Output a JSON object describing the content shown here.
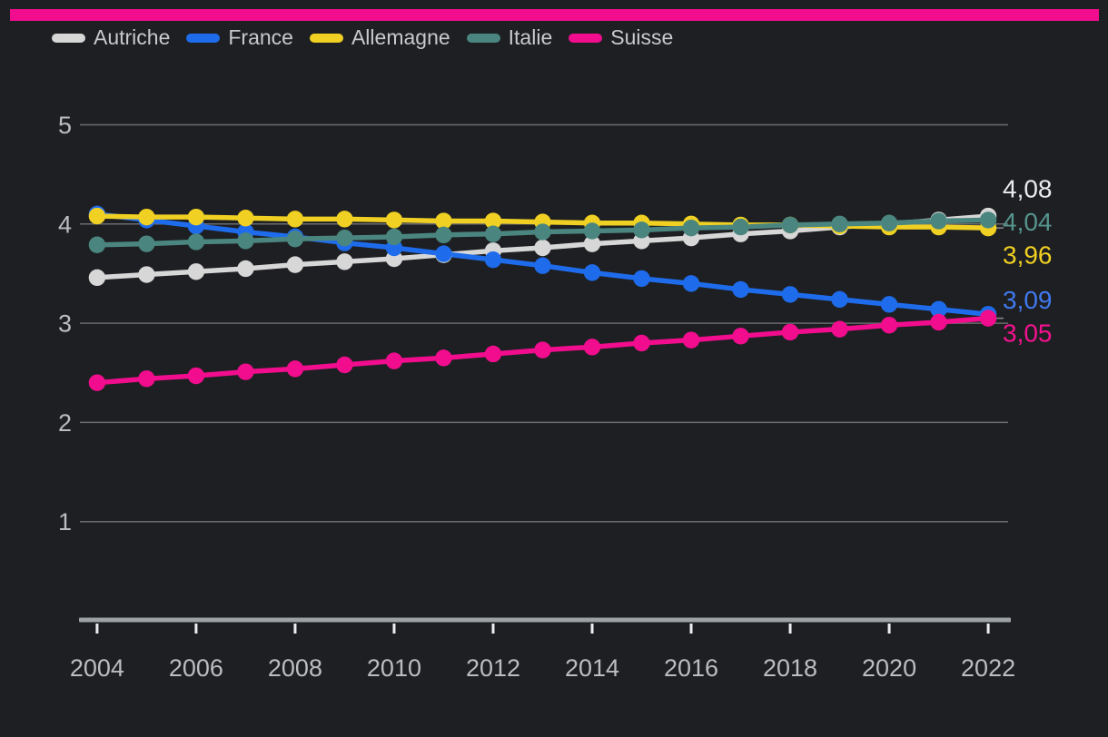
{
  "theme": {
    "background": "#1e1f22",
    "accent_bar_color": "#f20d8e",
    "grid_color": "#6a6b6e",
    "axis_line_color": "#9fa2a5",
    "tick_color": "#eceef0",
    "axis_text_color": "#bcbdbf",
    "legend_text_color": "#c8c9cb",
    "callout_line_color": "#8a8b8e"
  },
  "legend": {
    "items": [
      {
        "label": "Autriche",
        "color": "#d7d7d7"
      },
      {
        "label": "France",
        "color": "#1e6cec"
      },
      {
        "label": "Allemagne",
        "color": "#f0d022"
      },
      {
        "label": "Italie",
        "color": "#4a867f"
      },
      {
        "label": "Suisse",
        "color": "#f20d8e"
      }
    ]
  },
  "chart_data": {
    "type": "line",
    "x": [
      2004,
      2005,
      2006,
      2007,
      2008,
      2009,
      2010,
      2011,
      2012,
      2013,
      2014,
      2015,
      2016,
      2017,
      2018,
      2019,
      2020,
      2021,
      2022
    ],
    "xticks": [
      2004,
      2006,
      2008,
      2010,
      2012,
      2014,
      2016,
      2018,
      2020,
      2022
    ],
    "yticks": [
      1,
      2,
      3,
      4,
      5
    ],
    "ylim": [
      0,
      5
    ],
    "grid": true,
    "legend_position": "top-left",
    "xlabel": "",
    "ylabel": "",
    "series": [
      {
        "name": "Autriche",
        "color": "#d7d7d7",
        "values": [
          3.46,
          3.49,
          3.52,
          3.55,
          3.59,
          3.62,
          3.65,
          3.69,
          3.73,
          3.76,
          3.8,
          3.83,
          3.86,
          3.9,
          3.93,
          3.97,
          4.0,
          4.04,
          4.08
        ],
        "end_label": "4,08",
        "end_label_color": "#ebebed",
        "callout": false
      },
      {
        "name": "France",
        "color": "#1e6cec",
        "values": [
          4.1,
          4.04,
          3.98,
          3.92,
          3.87,
          3.81,
          3.76,
          3.7,
          3.64,
          3.58,
          3.51,
          3.45,
          3.4,
          3.34,
          3.29,
          3.24,
          3.19,
          3.14,
          3.09
        ],
        "end_label": "3,09",
        "end_label_color": "#4079ef",
        "callout": false
      },
      {
        "name": "Allemagne",
        "color": "#f0d022",
        "values": [
          4.08,
          4.07,
          4.07,
          4.06,
          4.05,
          4.05,
          4.04,
          4.03,
          4.03,
          4.02,
          4.01,
          4.01,
          4.0,
          3.99,
          3.99,
          3.98,
          3.97,
          3.97,
          3.96
        ],
        "end_label": "3,96",
        "end_label_color": "#f0d022",
        "callout": true
      },
      {
        "name": "Italie",
        "color": "#4a867f",
        "values": [
          3.79,
          3.8,
          3.82,
          3.83,
          3.85,
          3.86,
          3.87,
          3.89,
          3.9,
          3.92,
          3.93,
          3.94,
          3.96,
          3.97,
          3.99,
          4.0,
          4.01,
          4.03,
          4.04
        ],
        "end_label": "4,04",
        "end_label_color": "#55948d",
        "callout": false
      },
      {
        "name": "Suisse",
        "color": "#f20d8e",
        "values": [
          2.4,
          2.44,
          2.47,
          2.51,
          2.54,
          2.58,
          2.62,
          2.65,
          2.69,
          2.73,
          2.76,
          2.8,
          2.83,
          2.87,
          2.91,
          2.94,
          2.98,
          3.01,
          3.05
        ],
        "end_label": "3,05",
        "end_label_color": "#f3128f",
        "callout": true
      }
    ]
  }
}
